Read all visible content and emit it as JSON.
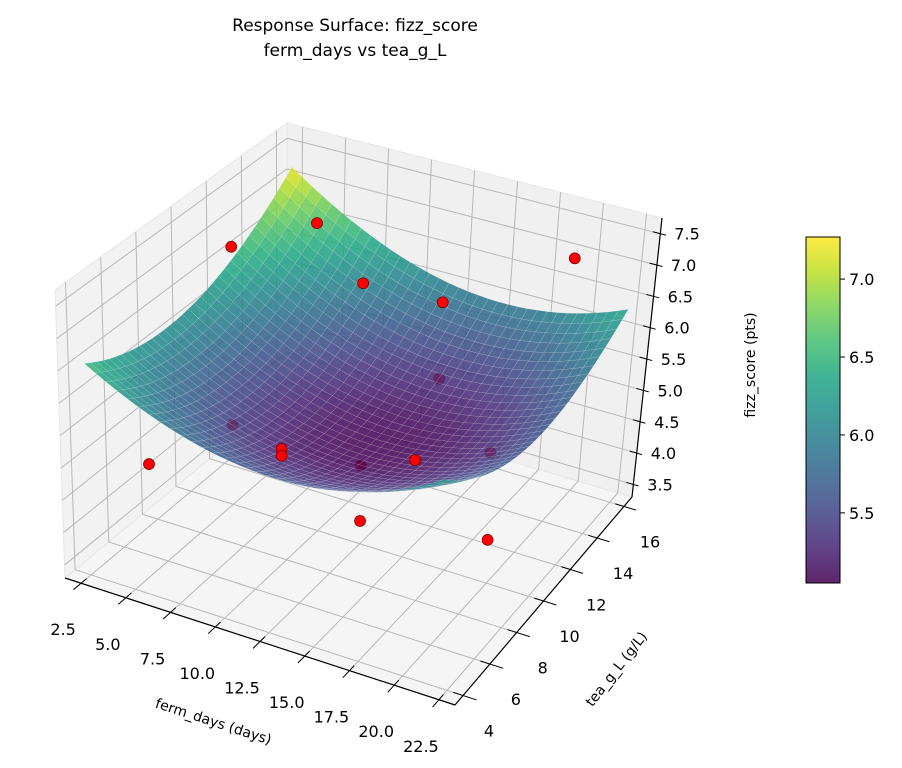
{
  "chart_data": {
    "type": "surface3d",
    "title": "Response Surface: fizz_score",
    "subtitle": "ferm_days vs tea_g_L",
    "xlabel": "ferm_days (days)",
    "ylabel": "tea_g_L (g/L)",
    "zlabel": "fizz_score (pts)",
    "xlim": [
      1.6,
      23.4
    ],
    "ylim": [
      3.4,
      16.6
    ],
    "zlim": [
      3.3,
      7.75
    ],
    "grid": true,
    "xticks": [
      2.5,
      5.0,
      7.5,
      10.0,
      12.5,
      15.0,
      17.5,
      20.0,
      22.5
    ],
    "xtick_labels": [
      "2.5",
      "5.0",
      "7.5",
      "10.0",
      "12.5",
      "15.0",
      "17.5",
      "20.0",
      "22.5"
    ],
    "yticks": [
      4,
      6,
      8,
      10,
      12,
      14,
      16
    ],
    "ytick_labels": [
      "4",
      "6",
      "8",
      "10",
      "12",
      "14",
      "16"
    ],
    "zticks": [
      3.5,
      4.0,
      4.5,
      5.0,
      5.5,
      6.0,
      6.5,
      7.0,
      7.5
    ],
    "ztick_labels": [
      "3.5",
      "4.0",
      "4.5",
      "5.0",
      "5.5",
      "6.0",
      "6.5",
      "7.0",
      "7.5"
    ],
    "surface": {
      "colormap": "viridis",
      "x": [
        2.5,
        12.5,
        22.5
      ],
      "y": [
        4,
        10,
        16
      ],
      "z": [
        [
          6.56,
          5.61,
          6.26
        ],
        [
          6.19,
          5.1,
          5.61
        ],
        [
          7.22,
          5.99,
          6.36
        ]
      ]
    },
    "points": {
      "color": "#ff0000",
      "x": [
        5,
        5,
        5,
        5,
        12.5,
        12.5,
        12.5,
        12.5,
        12.5,
        12.5,
        12.5,
        20,
        20,
        20,
        20
      ],
      "y": [
        5,
        10,
        10,
        15,
        5,
        5,
        10,
        10,
        10,
        15,
        15,
        5,
        10,
        10,
        15
      ],
      "z": [
        5.0,
        7.35,
        4.55,
        6.7,
        5.8,
        5.7,
        7.3,
        4.5,
        3.65,
        5.97,
        4.75,
        6.17,
        5.26,
        3.95,
        7.2
      ]
    },
    "colorbar": {
      "range": [
        5.05,
        7.27
      ],
      "ticks": [
        5.5,
        6.0,
        6.5,
        7.0
      ],
      "tick_labels": [
        "5.5",
        "6.0",
        "6.5",
        "7.0"
      ]
    }
  }
}
